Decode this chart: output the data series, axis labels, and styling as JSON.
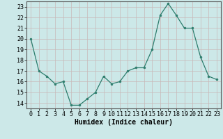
{
  "x": [
    0,
    1,
    2,
    3,
    4,
    5,
    6,
    7,
    8,
    9,
    10,
    11,
    12,
    13,
    14,
    15,
    16,
    17,
    18,
    19,
    20,
    21,
    22,
    23
  ],
  "y": [
    20.0,
    17.0,
    16.5,
    15.8,
    16.0,
    13.8,
    13.8,
    14.4,
    15.0,
    16.5,
    15.8,
    16.0,
    17.0,
    17.3,
    17.3,
    19.0,
    22.2,
    23.3,
    22.2,
    21.0,
    21.0,
    18.3,
    16.5,
    16.2
  ],
  "xlim": [
    -0.5,
    23.5
  ],
  "ylim": [
    13.5,
    23.5
  ],
  "yticks": [
    14,
    15,
    16,
    17,
    18,
    19,
    20,
    21,
    22,
    23
  ],
  "xticks": [
    0,
    1,
    2,
    3,
    4,
    5,
    6,
    7,
    8,
    9,
    10,
    11,
    12,
    13,
    14,
    15,
    16,
    17,
    18,
    19,
    20,
    21,
    22,
    23
  ],
  "xlabel": "Humidex (Indice chaleur)",
  "line_color": "#2d7d6d",
  "marker_color": "#2d7d6d",
  "bg_color": "#cce8e8",
  "grid_color": "#c8b8b8",
  "xlabel_fontsize": 7,
  "tick_fontsize": 6
}
